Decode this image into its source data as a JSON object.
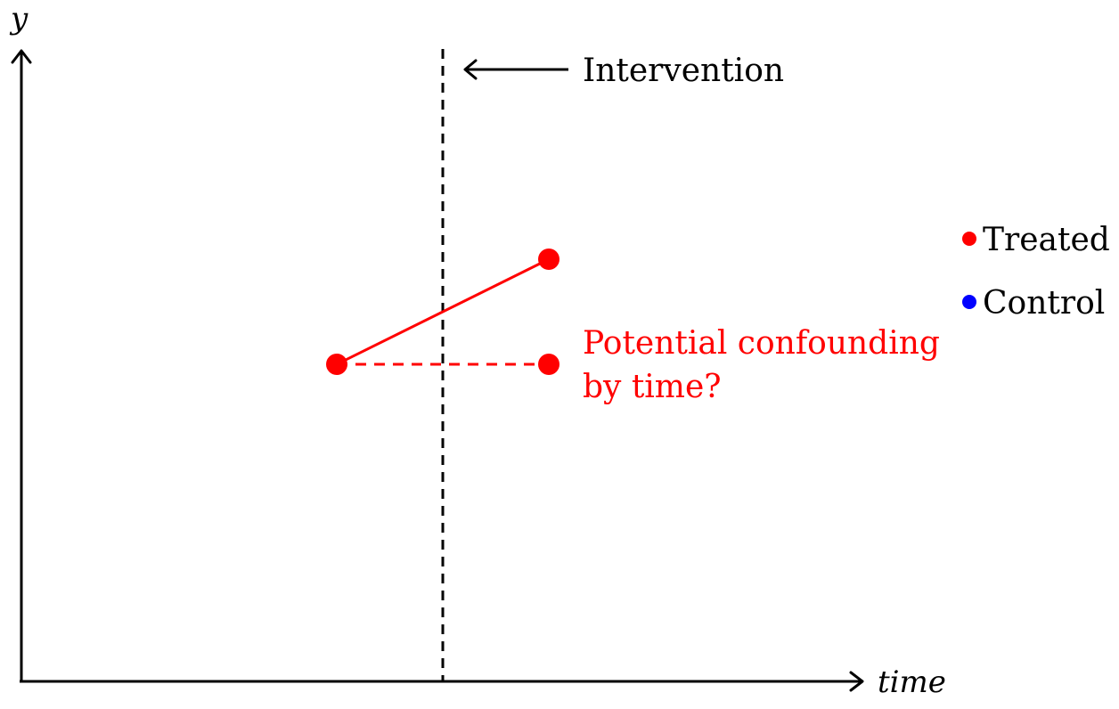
{
  "axes": {
    "y_label": "y",
    "x_label": "time"
  },
  "intervention": {
    "label": "Intervention"
  },
  "annotation": {
    "line1": "Potential confounding",
    "line2": "by time?"
  },
  "legend": {
    "items": [
      {
        "label": "Treated",
        "color": "#ff0000"
      },
      {
        "label": "Control",
        "color": "#0000ff"
      }
    ]
  },
  "colors": {
    "treated": "#ff0000",
    "control": "#0000ff",
    "axis": "#000000"
  }
}
